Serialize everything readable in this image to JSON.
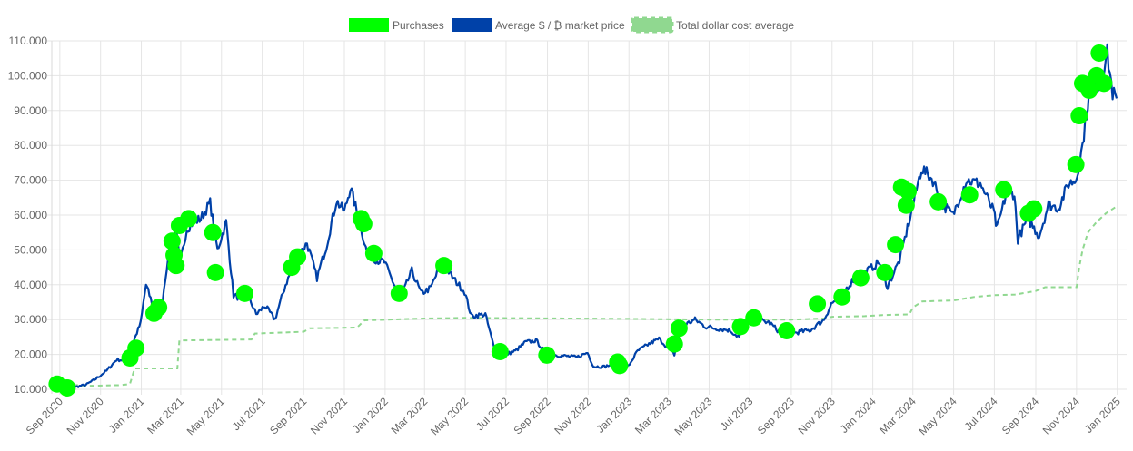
{
  "colors": {
    "purchases": "#00ff00",
    "price": "#0041a8",
    "dca": "#90d890",
    "grid": "#e5e5e5",
    "text": "#666666"
  },
  "chart_data": {
    "type": "line",
    "legend_position": "top",
    "grid": true,
    "legend": [
      "Purchases",
      "Average $ / ₿ market price",
      "Total dollar cost average"
    ],
    "ylim": [
      10000,
      110000
    ],
    "yticks": [
      "10.000",
      "20.000",
      "30.000",
      "40.000",
      "50.000",
      "60.000",
      "70.000",
      "80.000",
      "90.000",
      "100.000",
      "110.000"
    ],
    "xlim": [
      "2020-08-20",
      "2025-01-15"
    ],
    "xticks": [
      {
        "date": "2020-09-01",
        "label": "Sep 2020"
      },
      {
        "date": "2020-11-01",
        "label": "Nov 2020"
      },
      {
        "date": "2021-01-01",
        "label": "Jan 2021"
      },
      {
        "date": "2021-03-01",
        "label": "Mar 2021"
      },
      {
        "date": "2021-05-01",
        "label": "May 2021"
      },
      {
        "date": "2021-07-01",
        "label": "Jul 2021"
      },
      {
        "date": "2021-09-01",
        "label": "Sep 2021"
      },
      {
        "date": "2021-11-01",
        "label": "Nov 2021"
      },
      {
        "date": "2022-01-01",
        "label": "Jan 2022"
      },
      {
        "date": "2022-03-01",
        "label": "Mar 2022"
      },
      {
        "date": "2022-05-01",
        "label": "May 2022"
      },
      {
        "date": "2022-07-01",
        "label": "Jul 2022"
      },
      {
        "date": "2022-09-01",
        "label": "Sep 2022"
      },
      {
        "date": "2022-11-01",
        "label": "Nov 2022"
      },
      {
        "date": "2023-01-01",
        "label": "Jan 2023"
      },
      {
        "date": "2023-03-01",
        "label": "Mar 2023"
      },
      {
        "date": "2023-05-01",
        "label": "May 2023"
      },
      {
        "date": "2023-07-01",
        "label": "Jul 2023"
      },
      {
        "date": "2023-09-01",
        "label": "Sep 2023"
      },
      {
        "date": "2023-11-01",
        "label": "Nov 2023"
      },
      {
        "date": "2024-01-01",
        "label": "Jan 2024"
      },
      {
        "date": "2024-03-01",
        "label": "Mar 2024"
      },
      {
        "date": "2024-05-01",
        "label": "May 2024"
      },
      {
        "date": "2024-07-01",
        "label": "Jul 2024"
      },
      {
        "date": "2024-09-01",
        "label": "Sep 2024"
      },
      {
        "date": "2024-11-01",
        "label": "Nov 2024"
      },
      {
        "date": "2025-01-01",
        "label": "Jan 2025"
      }
    ],
    "series": [
      {
        "name": "Average $ / ₿ market price",
        "style": "line",
        "points": [
          [
            "2020-08-28",
            11500
          ],
          [
            "2020-09-10",
            10400
          ],
          [
            "2020-09-25",
            10700
          ],
          [
            "2020-10-10",
            11300
          ],
          [
            "2020-10-25",
            13000
          ],
          [
            "2020-11-10",
            15300
          ],
          [
            "2020-11-25",
            18500
          ],
          [
            "2020-12-10",
            18300
          ],
          [
            "2020-12-20",
            23500
          ],
          [
            "2020-12-31",
            29000
          ],
          [
            "2021-01-08",
            40000
          ],
          [
            "2021-01-15",
            36000
          ],
          [
            "2021-01-22",
            32000
          ],
          [
            "2021-01-31",
            33000
          ],
          [
            "2021-02-08",
            45000
          ],
          [
            "2021-02-15",
            48000
          ],
          [
            "2021-02-21",
            57000
          ],
          [
            "2021-02-28",
            46000
          ],
          [
            "2021-03-10",
            56000
          ],
          [
            "2021-03-20",
            58000
          ],
          [
            "2021-03-31",
            59000
          ],
          [
            "2021-04-14",
            63500
          ],
          [
            "2021-04-25",
            50000
          ],
          [
            "2021-05-08",
            58000
          ],
          [
            "2021-05-19",
            37000
          ],
          [
            "2021-05-31",
            36000
          ],
          [
            "2021-06-10",
            37000
          ],
          [
            "2021-06-22",
            31500
          ],
          [
            "2021-07-05",
            34000
          ],
          [
            "2021-07-20",
            30000
          ],
          [
            "2021-08-05",
            40000
          ],
          [
            "2021-08-20",
            47000
          ],
          [
            "2021-09-06",
            52000
          ],
          [
            "2021-09-21",
            42000
          ],
          [
            "2021-10-05",
            51000
          ],
          [
            "2021-10-20",
            64000
          ],
          [
            "2021-11-01",
            61000
          ],
          [
            "2021-11-10",
            68000
          ],
          [
            "2021-11-25",
            57000
          ],
          [
            "2021-12-05",
            49000
          ],
          [
            "2021-12-20",
            47000
          ],
          [
            "2021-12-31",
            46500
          ],
          [
            "2022-01-10",
            42000
          ],
          [
            "2022-01-24",
            36000
          ],
          [
            "2022-02-10",
            44000
          ],
          [
            "2022-02-24",
            37500
          ],
          [
            "2022-03-10",
            39000
          ],
          [
            "2022-03-28",
            47000
          ],
          [
            "2022-04-10",
            42500
          ],
          [
            "2022-04-30",
            38000
          ],
          [
            "2022-05-10",
            31000
          ],
          [
            "2022-05-31",
            31500
          ],
          [
            "2022-06-13",
            22000
          ],
          [
            "2022-06-18",
            19000
          ],
          [
            "2022-06-30",
            20000
          ],
          [
            "2022-07-15",
            21000
          ],
          [
            "2022-07-30",
            23500
          ],
          [
            "2022-08-15",
            24000
          ],
          [
            "2022-08-31",
            20000
          ],
          [
            "2022-09-15",
            19800
          ],
          [
            "2022-09-30",
            19500
          ],
          [
            "2022-10-15",
            19200
          ],
          [
            "2022-10-31",
            20500
          ],
          [
            "2022-11-09",
            16500
          ],
          [
            "2022-11-25",
            16500
          ],
          [
            "2022-12-15",
            17500
          ],
          [
            "2022-12-31",
            16600
          ],
          [
            "2023-01-14",
            21000
          ],
          [
            "2023-01-31",
            23000
          ],
          [
            "2023-02-15",
            24500
          ],
          [
            "2023-03-10",
            20000
          ],
          [
            "2023-03-20",
            28000
          ],
          [
            "2023-04-10",
            30000
          ],
          [
            "2023-04-25",
            28000
          ],
          [
            "2023-05-10",
            27500
          ],
          [
            "2023-05-31",
            27000
          ],
          [
            "2023-06-15",
            25000
          ],
          [
            "2023-06-30",
            30500
          ],
          [
            "2023-07-15",
            30000
          ],
          [
            "2023-07-31",
            29000
          ],
          [
            "2023-08-17",
            26000
          ],
          [
            "2023-08-31",
            26000
          ],
          [
            "2023-09-15",
            26500
          ],
          [
            "2023-09-30",
            27000
          ],
          [
            "2023-10-20",
            30000
          ],
          [
            "2023-10-31",
            34500
          ],
          [
            "2023-11-15",
            37000
          ],
          [
            "2023-12-05",
            42000
          ],
          [
            "2023-12-20",
            43500
          ],
          [
            "2024-01-11",
            46500
          ],
          [
            "2024-01-23",
            39500
          ],
          [
            "2024-02-10",
            47000
          ],
          [
            "2024-02-28",
            61000
          ],
          [
            "2024-03-14",
            73500
          ],
          [
            "2024-03-31",
            70000
          ],
          [
            "2024-04-15",
            63000
          ],
          [
            "2024-04-30",
            60000
          ],
          [
            "2024-05-20",
            70000
          ],
          [
            "2024-06-10",
            69000
          ],
          [
            "2024-06-30",
            61000
          ],
          [
            "2024-07-05",
            56000
          ],
          [
            "2024-07-20",
            67000
          ],
          [
            "2024-07-31",
            66000
          ],
          [
            "2024-08-05",
            53000
          ],
          [
            "2024-08-20",
            59000
          ],
          [
            "2024-09-06",
            54000
          ],
          [
            "2024-09-20",
            63000
          ],
          [
            "2024-10-05",
            62000
          ],
          [
            "2024-10-20",
            69000
          ],
          [
            "2024-10-31",
            70000
          ],
          [
            "2024-11-10",
            80000
          ],
          [
            "2024-11-22",
            98500
          ],
          [
            "2024-12-05",
            97000
          ],
          [
            "2024-12-17",
            106500
          ],
          [
            "2024-12-25",
            95000
          ],
          [
            "2024-12-31",
            93500
          ]
        ]
      },
      {
        "name": "Total dollar cost average",
        "style": "dashed",
        "points": [
          [
            "2020-08-28",
            11500
          ],
          [
            "2020-10-15",
            11000
          ],
          [
            "2020-12-01",
            11200
          ],
          [
            "2020-12-15",
            11500
          ],
          [
            "2020-12-22",
            16000
          ],
          [
            "2021-02-24",
            16000
          ],
          [
            "2021-02-27",
            24000
          ],
          [
            "2021-06-15",
            24300
          ],
          [
            "2021-06-20",
            26000
          ],
          [
            "2021-09-01",
            26500
          ],
          [
            "2021-09-10",
            27500
          ],
          [
            "2021-11-20",
            27700
          ],
          [
            "2021-12-01",
            29800
          ],
          [
            "2022-03-01",
            30300
          ],
          [
            "2022-05-01",
            30500
          ],
          [
            "2022-08-01",
            30400
          ],
          [
            "2023-01-01",
            30200
          ],
          [
            "2023-05-01",
            30000
          ],
          [
            "2023-09-01",
            30000
          ],
          [
            "2023-10-20",
            30300
          ],
          [
            "2023-11-01",
            30800
          ],
          [
            "2023-12-20",
            31000
          ],
          [
            "2024-01-15",
            31300
          ],
          [
            "2024-02-25",
            31500
          ],
          [
            "2024-03-01",
            33500
          ],
          [
            "2024-03-15",
            35200
          ],
          [
            "2024-05-01",
            35500
          ],
          [
            "2024-06-01",
            36500
          ],
          [
            "2024-07-01",
            37000
          ],
          [
            "2024-08-01",
            37200
          ],
          [
            "2024-09-01",
            38200
          ],
          [
            "2024-09-15",
            39300
          ],
          [
            "2024-11-01",
            39300
          ],
          [
            "2024-11-05",
            45000
          ],
          [
            "2024-11-10",
            50000
          ],
          [
            "2024-11-18",
            55000
          ],
          [
            "2024-12-01",
            58000
          ],
          [
            "2024-12-15",
            60500
          ],
          [
            "2024-12-31",
            62500
          ]
        ]
      },
      {
        "name": "Purchases",
        "style": "points",
        "points": [
          [
            "2020-08-28",
            11500
          ],
          [
            "2020-09-12",
            10400
          ],
          [
            "2020-12-15",
            19000
          ],
          [
            "2020-12-24",
            21800
          ],
          [
            "2021-01-20",
            31800
          ],
          [
            "2021-01-27",
            33500
          ],
          [
            "2021-02-16",
            52500
          ],
          [
            "2021-02-19",
            48500
          ],
          [
            "2021-02-22",
            45500
          ],
          [
            "2021-02-27",
            57000
          ],
          [
            "2021-03-13",
            59000
          ],
          [
            "2021-04-18",
            55000
          ],
          [
            "2021-04-22",
            43500
          ],
          [
            "2021-06-05",
            37500
          ],
          [
            "2021-08-14",
            45000
          ],
          [
            "2021-08-23",
            48000
          ],
          [
            "2021-11-26",
            59000
          ],
          [
            "2021-11-30",
            57500
          ],
          [
            "2021-12-15",
            49000
          ],
          [
            "2022-01-22",
            37500
          ],
          [
            "2022-03-30",
            45500
          ],
          [
            "2022-06-22",
            20800
          ],
          [
            "2022-08-31",
            19800
          ],
          [
            "2022-12-15",
            17800
          ],
          [
            "2022-12-18",
            16800
          ],
          [
            "2023-03-10",
            23000
          ],
          [
            "2023-03-17",
            27500
          ],
          [
            "2023-06-17",
            28000
          ],
          [
            "2023-07-07",
            30500
          ],
          [
            "2023-08-25",
            26800
          ],
          [
            "2023-10-10",
            34500
          ],
          [
            "2023-11-16",
            36500
          ],
          [
            "2023-12-14",
            42000
          ],
          [
            "2024-01-19",
            43500
          ],
          [
            "2024-02-04",
            51500
          ],
          [
            "2024-02-13",
            68000
          ],
          [
            "2024-02-20",
            62800
          ],
          [
            "2024-02-23",
            66800
          ],
          [
            "2024-04-08",
            63800
          ],
          [
            "2024-05-25",
            65800
          ],
          [
            "2024-07-15",
            67300
          ],
          [
            "2024-08-21",
            60500
          ],
          [
            "2024-08-29",
            61800
          ],
          [
            "2024-10-31",
            74500
          ],
          [
            "2024-11-05",
            88500
          ],
          [
            "2024-11-10",
            97800
          ],
          [
            "2024-11-20",
            95800
          ],
          [
            "2024-12-01",
            100000
          ],
          [
            "2024-12-05",
            106500
          ],
          [
            "2024-12-12",
            97800
          ]
        ]
      }
    ]
  }
}
